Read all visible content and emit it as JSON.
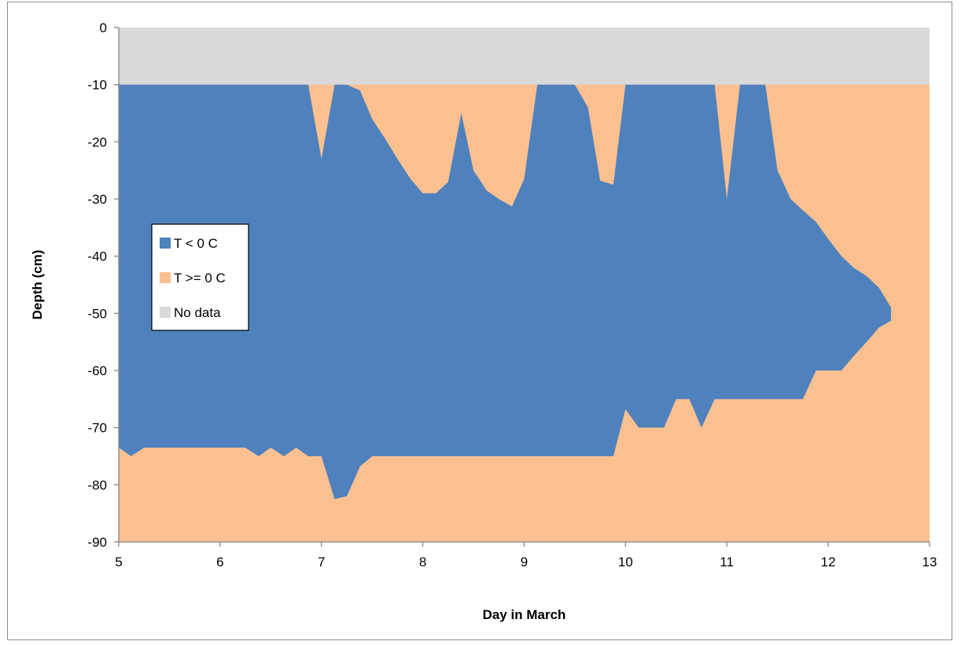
{
  "chart_data": {
    "type": "area",
    "title": "",
    "xlabel": "Day in March",
    "ylabel": "Depth (cm)",
    "xlim": [
      5,
      13
    ],
    "ylim": [
      -90,
      0
    ],
    "x_ticks": [
      "5",
      "6",
      "7",
      "8",
      "9",
      "10",
      "11",
      "12",
      "13"
    ],
    "y_ticks": [
      "0",
      "-10",
      "-20",
      "-30",
      "-40",
      "-50",
      "-60",
      "-70",
      "-80",
      "-90"
    ],
    "grid": false,
    "legend_position": "left",
    "background_fill": "T >= 0 C",
    "series": [
      {
        "name": "No data",
        "color": "#d9d9d9",
        "region": "band",
        "top": 0,
        "bottom": -10
      },
      {
        "name": "T < 0 C",
        "color": "#4f81bd",
        "region": "between",
        "top_boundary": [
          [
            5.0,
            -10
          ],
          [
            6.87,
            -10
          ],
          [
            7.0,
            -23
          ],
          [
            7.13,
            -10
          ],
          [
            7.25,
            -10
          ],
          [
            7.38,
            -11
          ],
          [
            7.5,
            -16
          ],
          [
            7.63,
            -19.5
          ],
          [
            7.75,
            -23
          ],
          [
            7.88,
            -26.5
          ],
          [
            8.0,
            -29
          ],
          [
            8.13,
            -29
          ],
          [
            8.25,
            -27
          ],
          [
            8.38,
            -15
          ],
          [
            8.5,
            -25
          ],
          [
            8.63,
            -28.5
          ],
          [
            8.75,
            -30
          ],
          [
            8.88,
            -31.3
          ],
          [
            9.0,
            -26.5
          ],
          [
            9.13,
            -10
          ],
          [
            9.5,
            -10
          ],
          [
            9.63,
            -14
          ],
          [
            9.75,
            -26.8
          ],
          [
            9.88,
            -27.5
          ],
          [
            10.0,
            -10
          ],
          [
            10.88,
            -10
          ],
          [
            11.0,
            -30
          ],
          [
            11.13,
            -10
          ],
          [
            11.38,
            -10
          ],
          [
            11.5,
            -25
          ],
          [
            11.63,
            -30
          ],
          [
            11.75,
            -32
          ],
          [
            11.88,
            -34
          ],
          [
            12.0,
            -37
          ],
          [
            12.13,
            -40
          ],
          [
            12.25,
            -42
          ],
          [
            12.38,
            -43.5
          ],
          [
            12.5,
            -45.5
          ],
          [
            12.62,
            -49
          ],
          [
            12.62,
            -51.3
          ]
        ],
        "bottom_boundary": [
          [
            5.0,
            -73.5
          ],
          [
            5.12,
            -75
          ],
          [
            5.25,
            -73.5
          ],
          [
            6.25,
            -73.5
          ],
          [
            6.38,
            -75
          ],
          [
            6.5,
            -73.5
          ],
          [
            6.63,
            -75
          ],
          [
            6.75,
            -73.5
          ],
          [
            6.87,
            -75
          ],
          [
            7.0,
            -75
          ],
          [
            7.13,
            -82.5
          ],
          [
            7.25,
            -82
          ],
          [
            7.38,
            -76.8
          ],
          [
            7.5,
            -75
          ],
          [
            9.88,
            -75
          ],
          [
            10.0,
            -66.8
          ],
          [
            10.13,
            -70
          ],
          [
            10.38,
            -70
          ],
          [
            10.5,
            -65
          ],
          [
            10.63,
            -65
          ],
          [
            10.75,
            -70
          ],
          [
            10.88,
            -65
          ],
          [
            11.75,
            -65
          ],
          [
            11.88,
            -60
          ],
          [
            12.13,
            -60
          ],
          [
            12.25,
            -57.5
          ],
          [
            12.38,
            -55
          ],
          [
            12.5,
            -52.5
          ],
          [
            12.62,
            -51.3
          ]
        ]
      },
      {
        "name": "T >= 0 C",
        "color": "#fac090",
        "region": "remainder"
      }
    ],
    "legend_order": [
      "T < 0 C",
      "T >= 0 C",
      "No data"
    ]
  }
}
